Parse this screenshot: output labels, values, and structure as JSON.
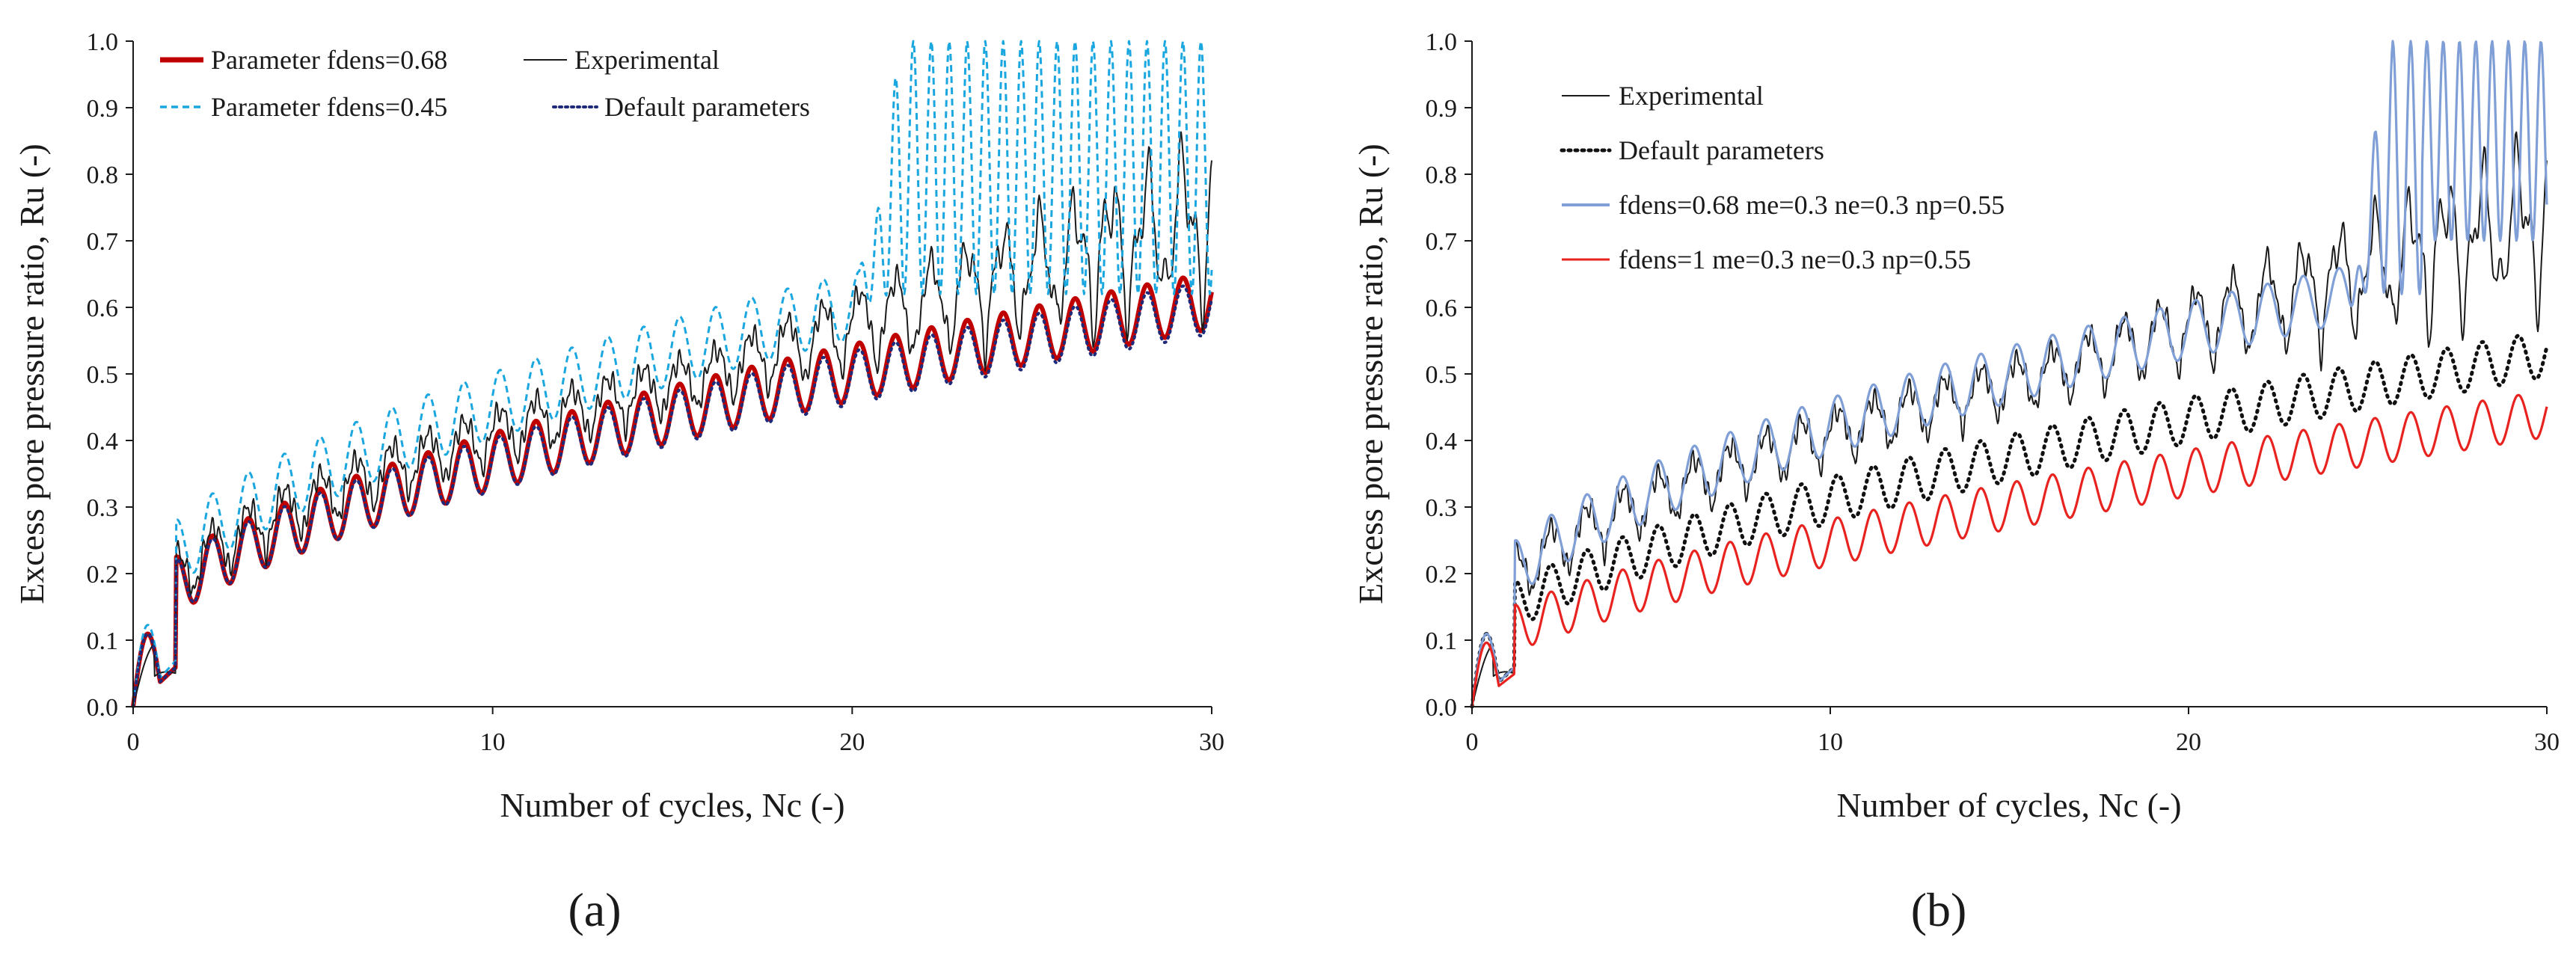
{
  "figure": {
    "panel_labels": [
      "(a)",
      "(b)"
    ]
  },
  "chart_data": [
    {
      "type": "line",
      "panel": "(a)",
      "xlabel": "Number of cycles, Nc (-)",
      "ylabel": "Excess pore pressure ratio, Ru (-)",
      "xlim": [
        0,
        30
      ],
      "ylim": [
        0,
        1.0
      ],
      "xticks": [
        "0",
        "10",
        "20",
        "30"
      ],
      "yticks": [
        "0.0",
        "0.1",
        "0.2",
        "0.3",
        "0.4",
        "0.5",
        "0.6",
        "0.7",
        "0.8",
        "0.9",
        "1.0"
      ],
      "grid": false,
      "legend_position": "top-left",
      "series": [
        {
          "name": "Parameter fdens=0.68",
          "color": "#c00000",
          "style": "solid-thick",
          "model": {
            "type": "cyclic",
            "start": 0.0,
            "early": [
              0.09,
              0.06
            ],
            "b0": 0.11,
            "b1": 0.61,
            "shape": 0.6,
            "amp": 0.085,
            "clip": 1.0
          }
        },
        {
          "name": "Experimental",
          "color": "#1a1a1a",
          "style": "solid-thin",
          "model": {
            "type": "experimental",
            "start": 0.0,
            "b0": 0.1,
            "b1": 0.66,
            "shape": 0.55,
            "amp": 0.08,
            "late_growth": 0.12,
            "clip": 1.0
          }
        },
        {
          "name": "Parameter fdens=0.45",
          "color": "#1aa7e0",
          "style": "dashed",
          "model": {
            "type": "cyclic",
            "start": 0.0,
            "early": [
              0.1,
              0.07
            ],
            "b0": 0.13,
            "b1": 0.72,
            "shape": 0.55,
            "amp": 0.1,
            "unstable_after": 20.2,
            "clip": 1.0
          }
        },
        {
          "name": "Default parameters",
          "color": "#1f2a7a",
          "style": "dotted",
          "model": {
            "type": "cyclic",
            "start": 0.0,
            "early": [
              0.09,
              0.06
            ],
            "b0": 0.11,
            "b1": 0.6,
            "shape": 0.6,
            "amp": 0.08,
            "clip": 1.0
          }
        }
      ]
    },
    {
      "type": "line",
      "panel": "(b)",
      "xlabel": "Number of cycles, Nc (-)",
      "ylabel": "Excess pore pressure ratio, Ru (-)",
      "xlim": [
        0,
        30
      ],
      "ylim": [
        0,
        1.0
      ],
      "xticks": [
        "0",
        "10",
        "20",
        "30"
      ],
      "yticks": [
        "0.0",
        "0.1",
        "0.2",
        "0.3",
        "0.4",
        "0.5",
        "0.6",
        "0.7",
        "0.8",
        "0.9",
        "1.0"
      ],
      "grid": false,
      "legend_position": "top-left",
      "series": [
        {
          "name": "Experimental",
          "color": "#1a1a1a",
          "style": "solid-thin",
          "model": {
            "type": "experimental",
            "start": 0.0,
            "b0": 0.1,
            "b1": 0.66,
            "shape": 0.55,
            "amp": 0.08,
            "late_growth": 0.12,
            "clip": 1.0
          }
        },
        {
          "name": "Default parameters",
          "color": "#111111",
          "style": "dotted-black",
          "model": {
            "type": "cyclic",
            "start": 0.0,
            "early": [
              0.09,
              0.06
            ],
            "b0": 0.1,
            "b1": 0.53,
            "shape": 0.65,
            "amp": 0.07,
            "clip": 1.0
          }
        },
        {
          "name": "fdens=0.68 me=0.3 ne=0.3 np=0.55",
          "color": "#7f9fd6",
          "style": "solid",
          "model": {
            "type": "cyclic",
            "start": 0.0,
            "early": [
              0.09,
              0.06
            ],
            "b0": 0.11,
            "b1": 0.68,
            "shape": 0.55,
            "amp": 0.085,
            "unstable_after": 24.5,
            "clip": 1.0
          }
        },
        {
          "name": "fdens=1 me=0.3 ne=0.3 np=0.55",
          "color": "#e8231f",
          "style": "solid",
          "model": {
            "type": "cyclic",
            "start": 0.0,
            "early": [
              0.08,
              0.05
            ],
            "b0": 0.08,
            "b1": 0.44,
            "shape": 0.7,
            "amp": 0.07,
            "clip": 1.0
          }
        }
      ]
    }
  ]
}
